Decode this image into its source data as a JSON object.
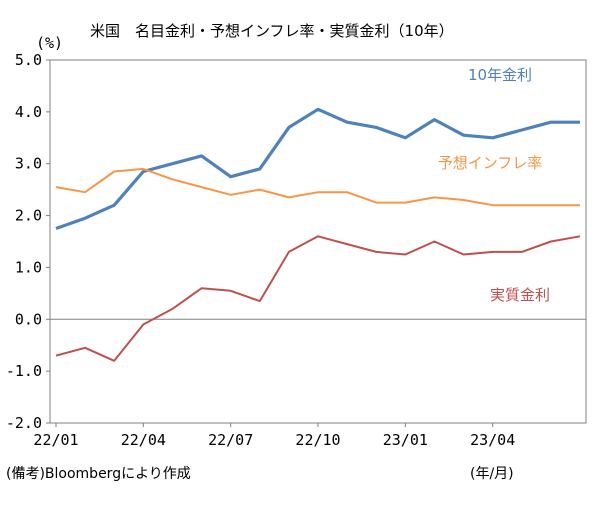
{
  "chart_data": {
    "type": "line",
    "title": "米国　名目金利・予想インフレ率・実質金利（10年）",
    "y_unit": "(%)",
    "x_unit": "(年/月)",
    "ylim": [
      -2.0,
      5.0
    ],
    "yticks": [
      "5.0",
      "4.0",
      "3.0",
      "2.0",
      "1.0",
      "0.0",
      "-1.0",
      "-2.0"
    ],
    "xticks": [
      "22/01",
      "22/04",
      "22/07",
      "22/10",
      "23/01",
      "23/04"
    ],
    "grid": false,
    "zero_line": true,
    "source": "(備考)Bloombergにより作成",
    "x": [
      "22/01",
      "22/02",
      "22/03",
      "22/04",
      "22/05",
      "22/06",
      "22/07",
      "22/08",
      "22/09",
      "22/10",
      "22/11",
      "22/12",
      "23/01",
      "23/02",
      "23/03",
      "23/04",
      "23/05",
      "23/06",
      "23/07"
    ],
    "series": [
      {
        "name": "10年金利",
        "color": "#4F81BD",
        "values": [
          1.75,
          1.95,
          2.2,
          2.85,
          3.0,
          3.15,
          2.75,
          2.9,
          3.7,
          4.05,
          3.8,
          3.7,
          3.5,
          3.85,
          3.55,
          3.5,
          3.65,
          3.8,
          3.8
        ]
      },
      {
        "name": "予想インフレ率",
        "color": "#F79646",
        "values": [
          2.55,
          2.45,
          2.85,
          2.9,
          2.7,
          2.55,
          2.4,
          2.5,
          2.35,
          2.45,
          2.45,
          2.25,
          2.25,
          2.35,
          2.3,
          2.2,
          2.2,
          2.2,
          2.2
        ]
      },
      {
        "name": "実質金利",
        "color": "#C0504D",
        "values": [
          -0.7,
          -0.55,
          -0.8,
          -0.1,
          0.2,
          0.6,
          0.55,
          0.35,
          1.3,
          1.6,
          1.45,
          1.3,
          1.25,
          1.5,
          1.25,
          1.3,
          1.3,
          1.5,
          1.6
        ]
      }
    ]
  }
}
